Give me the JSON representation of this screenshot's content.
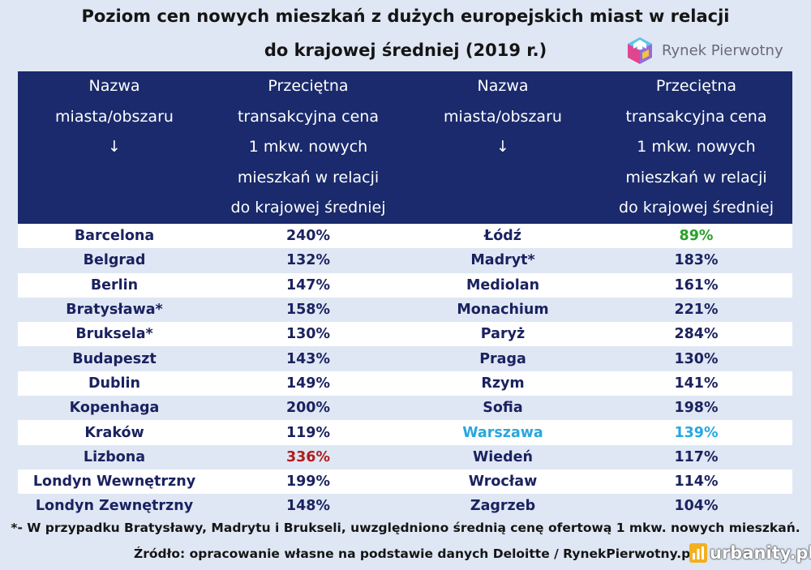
{
  "title": {
    "line1": "Poziom cen nowych mieszkań z dużych europejskich miast w relacji",
    "line2": "do krajowej średniej (2019 r.)"
  },
  "logo": {
    "label": "Rynek Pierwotny",
    "icon": "house-cube-icon"
  },
  "table": {
    "headers": {
      "city": [
        "Nazwa",
        "miasta/obszaru",
        "↓"
      ],
      "price": [
        "Przeciętna",
        "transakcyjna cena",
        "1 mkw. nowych",
        "mieszkań w relacji",
        "do krajowej średniej"
      ]
    },
    "rows": [
      {
        "left_city": "Barcelona",
        "left_value": "240%",
        "right_city": "Łódź",
        "right_value": "89%"
      },
      {
        "left_city": "Belgrad",
        "left_value": "132%",
        "right_city": "Madryt*",
        "right_value": "183%"
      },
      {
        "left_city": "Berlin",
        "left_value": "147%",
        "right_city": "Mediolan",
        "right_value": "161%"
      },
      {
        "left_city": "Bratysława*",
        "left_value": "158%",
        "right_city": "Monachium",
        "right_value": "221%"
      },
      {
        "left_city": "Bruksela*",
        "left_value": "130%",
        "right_city": "Paryż",
        "right_value": "284%"
      },
      {
        "left_city": "Budapeszt",
        "left_value": "143%",
        "right_city": "Praga",
        "right_value": "130%"
      },
      {
        "left_city": "Dublin",
        "left_value": "149%",
        "right_city": "Rzym",
        "right_value": "141%"
      },
      {
        "left_city": "Kopenhaga",
        "left_value": "200%",
        "right_city": "Sofia",
        "right_value": "198%"
      },
      {
        "left_city": "Kraków",
        "left_value": "119%",
        "right_city": "Warszawa",
        "right_value": "139%"
      },
      {
        "left_city": "Lizbona",
        "left_value": "336%",
        "right_city": "Wiedeń",
        "right_value": "117%"
      },
      {
        "left_city": "Londyn Wewnętrzny",
        "left_value": "199%",
        "right_city": "Wrocław",
        "right_value": "114%"
      },
      {
        "left_city": "Londyn Zewnętrzny",
        "left_value": "148%",
        "right_city": "Zagrzeb",
        "right_value": "104%"
      }
    ]
  },
  "highlights": {
    "lowest_color": "#2aa02a",
    "highest_color": "#b01c1c",
    "warsaw_color": "#27a7e0",
    "default_color": "#1a2260"
  },
  "footnote": "*- W przypadku Bratysławy, Madrytu i Brukseli, uwzględniono średnią cenę ofertową 1 mkw. nowych mieszkań.",
  "source": "Źródło: opracowanie własne na podstawie danych Deloitte / RynekPierwotny.pl",
  "brand": {
    "label": "urbanity.pl",
    "icon": "bar-chart-icon"
  }
}
